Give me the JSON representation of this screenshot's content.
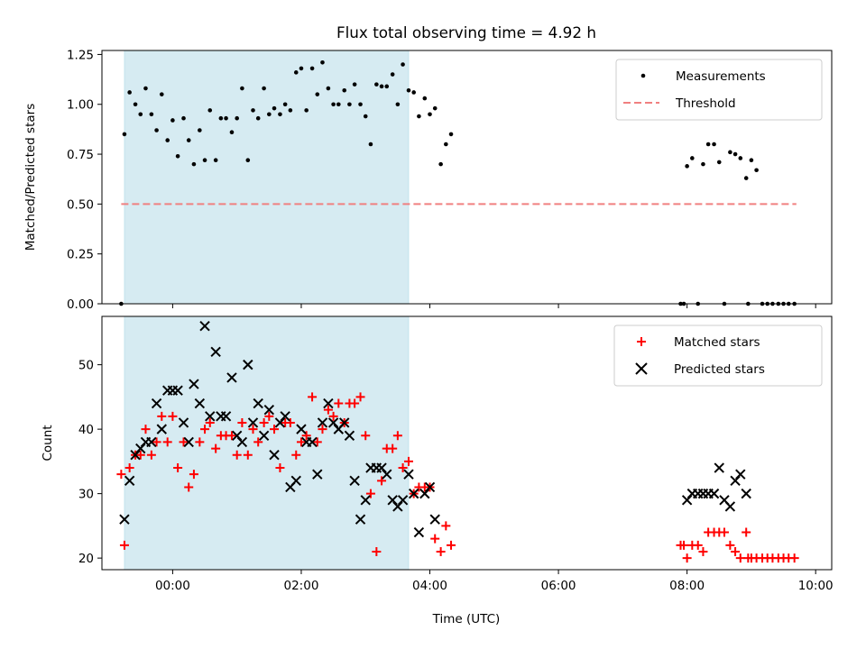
{
  "figure": {
    "title": "Flux total observing time = 4.92 h",
    "xlabel": "Time (UTC)"
  },
  "chart_data": [
    {
      "type": "scatter",
      "ylabel": "Matched/Predicted stars",
      "xlim": [
        -1.1,
        10.25
      ],
      "ylim": [
        0.0,
        1.27
      ],
      "yticks": [
        "0.00",
        "0.25",
        "0.50",
        "0.75",
        "1.00",
        "1.25"
      ],
      "ytick_values": [
        0,
        0.25,
        0.5,
        0.75,
        1.0,
        1.25
      ],
      "xticks_labeled": false,
      "shaded_interval": [
        -0.75,
        3.67
      ],
      "shade_color": "#add8e6",
      "threshold": {
        "y": 0.5,
        "x_range": [
          -0.8,
          9.7
        ],
        "color": "#f08080"
      },
      "legend": {
        "placement": "upper right",
        "entries": [
          "Measurements",
          "Threshold"
        ]
      },
      "series": [
        {
          "name": "Measurements",
          "marker": "dot",
          "color": "#000000",
          "points": [
            [
              -0.8,
              0.0
            ],
            [
              -0.75,
              0.85
            ],
            [
              -0.67,
              1.06
            ],
            [
              -0.58,
              1.0
            ],
            [
              -0.5,
              0.95
            ],
            [
              -0.42,
              1.08
            ],
            [
              -0.33,
              0.95
            ],
            [
              -0.25,
              0.87
            ],
            [
              -0.17,
              1.05
            ],
            [
              -0.08,
              0.82
            ],
            [
              0.0,
              0.92
            ],
            [
              0.08,
              0.74
            ],
            [
              0.17,
              0.93
            ],
            [
              0.25,
              0.82
            ],
            [
              0.33,
              0.7
            ],
            [
              0.42,
              0.87
            ],
            [
              0.5,
              0.72
            ],
            [
              0.58,
              0.97
            ],
            [
              0.67,
              0.72
            ],
            [
              0.75,
              0.93
            ],
            [
              0.83,
              0.93
            ],
            [
              0.92,
              0.86
            ],
            [
              1.0,
              0.93
            ],
            [
              1.08,
              1.08
            ],
            [
              1.17,
              0.72
            ],
            [
              1.25,
              0.97
            ],
            [
              1.33,
              0.93
            ],
            [
              1.42,
              1.08
            ],
            [
              1.5,
              0.95
            ],
            [
              1.58,
              0.98
            ],
            [
              1.67,
              0.95
            ],
            [
              1.75,
              1.0
            ],
            [
              1.83,
              0.97
            ],
            [
              1.92,
              1.16
            ],
            [
              2.0,
              1.18
            ],
            [
              2.08,
              0.97
            ],
            [
              2.17,
              1.18
            ],
            [
              2.25,
              1.05
            ],
            [
              2.33,
              1.21
            ],
            [
              2.42,
              1.08
            ],
            [
              2.5,
              1.0
            ],
            [
              2.58,
              1.0
            ],
            [
              2.67,
              1.07
            ],
            [
              2.75,
              1.0
            ],
            [
              2.83,
              1.1
            ],
            [
              2.92,
              1.0
            ],
            [
              3.0,
              0.94
            ],
            [
              3.08,
              0.8
            ],
            [
              3.17,
              1.1
            ],
            [
              3.25,
              1.09
            ],
            [
              3.33,
              1.09
            ],
            [
              3.42,
              1.15
            ],
            [
              3.5,
              1.0
            ],
            [
              3.58,
              1.2
            ],
            [
              3.67,
              1.07
            ],
            [
              3.75,
              1.06
            ],
            [
              3.83,
              0.94
            ],
            [
              3.92,
              1.03
            ],
            [
              4.0,
              0.95
            ],
            [
              4.08,
              0.98
            ],
            [
              4.17,
              0.7
            ],
            [
              4.25,
              0.8
            ],
            [
              4.33,
              0.85
            ],
            [
              7.9,
              0.0
            ],
            [
              7.95,
              0.0
            ],
            [
              8.0,
              0.69
            ],
            [
              8.08,
              0.73
            ],
            [
              8.17,
              0.0
            ],
            [
              8.25,
              0.7
            ],
            [
              8.33,
              0.8
            ],
            [
              8.42,
              0.8
            ],
            [
              8.5,
              0.71
            ],
            [
              8.58,
              0.0
            ],
            [
              8.67,
              0.76
            ],
            [
              8.75,
              0.75
            ],
            [
              8.83,
              0.73
            ],
            [
              8.92,
              0.63
            ],
            [
              8.95,
              0.0
            ],
            [
              9.0,
              0.72
            ],
            [
              9.08,
              0.67
            ],
            [
              9.17,
              0.0
            ],
            [
              9.25,
              0.0
            ],
            [
              9.33,
              0.0
            ],
            [
              9.42,
              0.0
            ],
            [
              9.5,
              0.0
            ],
            [
              9.58,
              0.0
            ],
            [
              9.67,
              0.0
            ]
          ]
        }
      ]
    },
    {
      "type": "scatter",
      "ylabel": "Count",
      "xlim": [
        -1.1,
        10.25
      ],
      "ylim": [
        18.2,
        57.5
      ],
      "yticks": [
        "20",
        "30",
        "40",
        "50"
      ],
      "ytick_values": [
        20,
        30,
        40,
        50
      ],
      "xticks": [
        "00:00",
        "02:00",
        "04:00",
        "06:00",
        "08:00",
        "10:00"
      ],
      "xtick_values": [
        0,
        2,
        4,
        6,
        8,
        10
      ],
      "shaded_interval": [
        -0.75,
        3.67
      ],
      "shade_color": "#add8e6",
      "legend": {
        "placement": "upper right",
        "entries": [
          "Matched stars",
          "Predicted stars"
        ]
      },
      "series": [
        {
          "name": "Matched stars",
          "marker": "plus",
          "color": "#ff0000",
          "points": [
            [
              -0.8,
              33
            ],
            [
              -0.75,
              22
            ],
            [
              -0.67,
              34
            ],
            [
              -0.58,
              36
            ],
            [
              -0.5,
              36
            ],
            [
              -0.42,
              40
            ],
            [
              -0.33,
              36
            ],
            [
              -0.25,
              38
            ],
            [
              -0.17,
              42
            ],
            [
              -0.08,
              38
            ],
            [
              0.0,
              42
            ],
            [
              0.08,
              34
            ],
            [
              0.17,
              38
            ],
            [
              0.25,
              31
            ],
            [
              0.33,
              33
            ],
            [
              0.42,
              38
            ],
            [
              0.5,
              40
            ],
            [
              0.58,
              41
            ],
            [
              0.67,
              37
            ],
            [
              0.75,
              39
            ],
            [
              0.83,
              39
            ],
            [
              0.92,
              39
            ],
            [
              1.0,
              36
            ],
            [
              1.08,
              41
            ],
            [
              1.17,
              36
            ],
            [
              1.25,
              40
            ],
            [
              1.33,
              38
            ],
            [
              1.42,
              41
            ],
            [
              1.5,
              42
            ],
            [
              1.58,
              40
            ],
            [
              1.67,
              34
            ],
            [
              1.75,
              41
            ],
            [
              1.83,
              41
            ],
            [
              1.92,
              36
            ],
            [
              2.0,
              38
            ],
            [
              2.08,
              39
            ],
            [
              2.17,
              45
            ],
            [
              2.25,
              38
            ],
            [
              2.33,
              40
            ],
            [
              2.42,
              43
            ],
            [
              2.5,
              42
            ],
            [
              2.58,
              44
            ],
            [
              2.67,
              41
            ],
            [
              2.75,
              44
            ],
            [
              2.83,
              44
            ],
            [
              2.92,
              45
            ],
            [
              3.0,
              39
            ],
            [
              3.08,
              30
            ],
            [
              3.17,
              21
            ],
            [
              3.25,
              32
            ],
            [
              3.33,
              37
            ],
            [
              3.42,
              37
            ],
            [
              3.5,
              39
            ],
            [
              3.58,
              34
            ],
            [
              3.67,
              35
            ],
            [
              3.75,
              30
            ],
            [
              3.83,
              31
            ],
            [
              3.92,
              31
            ],
            [
              4.0,
              31
            ],
            [
              4.08,
              23
            ],
            [
              4.17,
              21
            ],
            [
              4.25,
              25
            ],
            [
              4.33,
              22
            ],
            [
              7.9,
              22
            ],
            [
              7.95,
              22
            ],
            [
              8.0,
              20
            ],
            [
              8.08,
              22
            ],
            [
              8.17,
              22
            ],
            [
              8.25,
              21
            ],
            [
              8.33,
              24
            ],
            [
              8.42,
              24
            ],
            [
              8.5,
              24
            ],
            [
              8.58,
              24
            ],
            [
              8.67,
              22
            ],
            [
              8.75,
              21
            ],
            [
              8.83,
              20
            ],
            [
              8.92,
              24
            ],
            [
              8.95,
              20
            ],
            [
              9.0,
              20
            ],
            [
              9.08,
              20
            ],
            [
              9.17,
              20
            ],
            [
              9.25,
              20
            ],
            [
              9.33,
              20
            ],
            [
              9.42,
              20
            ],
            [
              9.5,
              20
            ],
            [
              9.58,
              20
            ],
            [
              9.67,
              20
            ]
          ]
        },
        {
          "name": "Predicted stars",
          "marker": "x",
          "color": "#000000",
          "points": [
            [
              -0.75,
              26
            ],
            [
              -0.67,
              32
            ],
            [
              -0.58,
              36
            ],
            [
              -0.5,
              37
            ],
            [
              -0.42,
              38
            ],
            [
              -0.33,
              38
            ],
            [
              -0.25,
              44
            ],
            [
              -0.17,
              40
            ],
            [
              -0.08,
              46
            ],
            [
              0.0,
              46
            ],
            [
              0.08,
              46
            ],
            [
              0.17,
              41
            ],
            [
              0.25,
              38
            ],
            [
              0.33,
              47
            ],
            [
              0.42,
              44
            ],
            [
              0.5,
              56
            ],
            [
              0.58,
              42
            ],
            [
              0.67,
              52
            ],
            [
              0.75,
              42
            ],
            [
              0.83,
              42
            ],
            [
              0.92,
              48
            ],
            [
              1.0,
              39
            ],
            [
              1.08,
              38
            ],
            [
              1.17,
              50
            ],
            [
              1.25,
              41
            ],
            [
              1.33,
              44
            ],
            [
              1.42,
              39
            ],
            [
              1.5,
              43
            ],
            [
              1.58,
              36
            ],
            [
              1.67,
              41
            ],
            [
              1.75,
              42
            ],
            [
              1.83,
              31
            ],
            [
              1.92,
              32
            ],
            [
              2.0,
              40
            ],
            [
              2.08,
              38
            ],
            [
              2.17,
              38
            ],
            [
              2.25,
              33
            ],
            [
              2.33,
              41
            ],
            [
              2.42,
              44
            ],
            [
              2.5,
              41
            ],
            [
              2.58,
              40
            ],
            [
              2.67,
              41
            ],
            [
              2.75,
              39
            ],
            [
              2.83,
              32
            ],
            [
              2.92,
              26
            ],
            [
              3.0,
              29
            ],
            [
              3.08,
              34
            ],
            [
              3.17,
              34
            ],
            [
              3.25,
              34
            ],
            [
              3.33,
              33
            ],
            [
              3.42,
              29
            ],
            [
              3.5,
              28
            ],
            [
              3.58,
              29
            ],
            [
              3.67,
              33
            ],
            [
              3.75,
              30
            ],
            [
              3.83,
              24
            ],
            [
              3.92,
              30
            ],
            [
              4.0,
              31
            ],
            [
              4.08,
              26
            ],
            [
              8.0,
              29
            ],
            [
              8.08,
              30
            ],
            [
              8.17,
              30
            ],
            [
              8.25,
              30
            ],
            [
              8.33,
              30
            ],
            [
              8.42,
              30
            ],
            [
              8.5,
              34
            ],
            [
              8.58,
              29
            ],
            [
              8.67,
              28
            ],
            [
              8.75,
              32
            ],
            [
              8.83,
              33
            ],
            [
              8.92,
              30
            ]
          ]
        }
      ]
    }
  ]
}
